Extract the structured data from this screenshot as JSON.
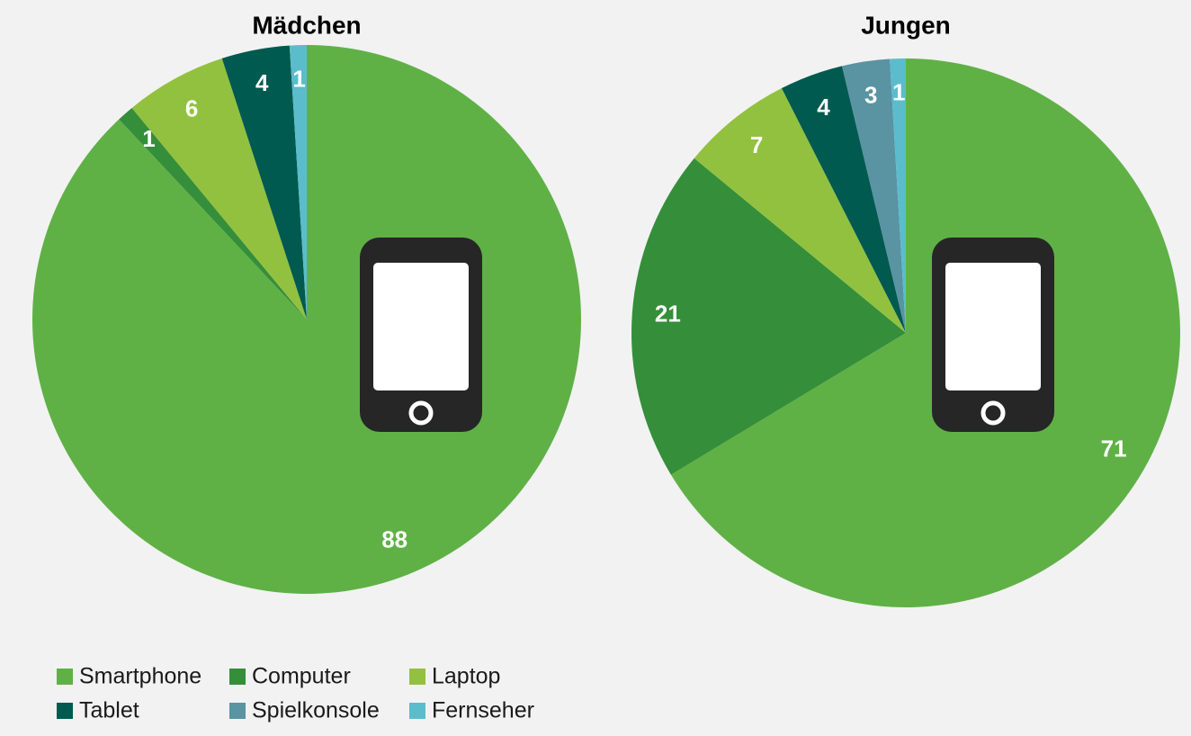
{
  "chart_data": [
    {
      "type": "pie",
      "title": "Mädchen",
      "categories": [
        "Smartphone",
        "Computer",
        "Laptop",
        "Tablet",
        "Fernseher"
      ],
      "values": [
        88,
        1,
        6,
        4,
        1
      ],
      "colors": [
        "#5fb146",
        "#358e3a",
        "#92c13f",
        "#005a4f",
        "#5bbccc"
      ]
    },
    {
      "type": "pie",
      "title": "Jungen",
      "categories": [
        "Smartphone",
        "Computer",
        "Laptop",
        "Tablet",
        "Spielkonsole",
        "Fernseher"
      ],
      "values": [
        71,
        21,
        7,
        4,
        3,
        1
      ],
      "colors": [
        "#5fb146",
        "#358e3a",
        "#92c13f",
        "#005a4f",
        "#5a93a2",
        "#5bbccc"
      ]
    }
  ]
}
